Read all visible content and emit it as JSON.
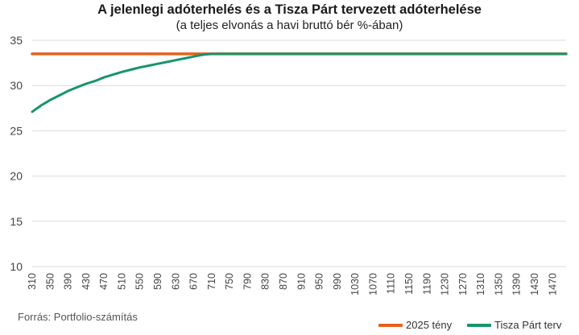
{
  "chart_data": {
    "type": "line",
    "title": "A jelenlegi adóterhelés és a Tisza Párt tervezett adóterhelése",
    "subtitle": "(a teljes elvonás a havi bruttó bér %-ában)",
    "source": "Forrás: Portfolio-számítás",
    "x_tick_labels": [
      "310",
      "350",
      "390",
      "430",
      "470",
      "510",
      "550",
      "590",
      "630",
      "670",
      "710",
      "750",
      "790",
      "830",
      "870",
      "910",
      "950",
      "990",
      "1030",
      "1070",
      "1110",
      "1150",
      "1190",
      "1230",
      "1270",
      "1310",
      "1350",
      "1390",
      "1430",
      "1470"
    ],
    "y_tick_labels": [
      "10",
      "15",
      "20",
      "25",
      "30",
      "35"
    ],
    "xlim": [
      310,
      1500
    ],
    "ylim": [
      10,
      35
    ],
    "grid": true,
    "legend_position": "bottom-right",
    "series": [
      {
        "name": "2025 tény",
        "color": "#E8601C",
        "x": [
          310,
          1500
        ],
        "y": [
          33.5,
          33.5
        ]
      },
      {
        "name": "Tisza Párt terv",
        "color": "#16956E",
        "x": [
          310,
          330,
          350,
          370,
          390,
          410,
          430,
          450,
          470,
          490,
          510,
          530,
          550,
          570,
          590,
          610,
          630,
          650,
          670,
          690,
          710,
          750,
          800,
          900,
          1000,
          1100,
          1200,
          1300,
          1400,
          1500
        ],
        "y": [
          27.1,
          27.8,
          28.4,
          28.9,
          29.4,
          29.8,
          30.2,
          30.5,
          30.9,
          31.2,
          31.5,
          31.75,
          32.0,
          32.2,
          32.4,
          32.6,
          32.8,
          33.0,
          33.2,
          33.4,
          33.5,
          33.5,
          33.5,
          33.5,
          33.5,
          33.5,
          33.5,
          33.5,
          33.5,
          33.5
        ]
      }
    ]
  }
}
